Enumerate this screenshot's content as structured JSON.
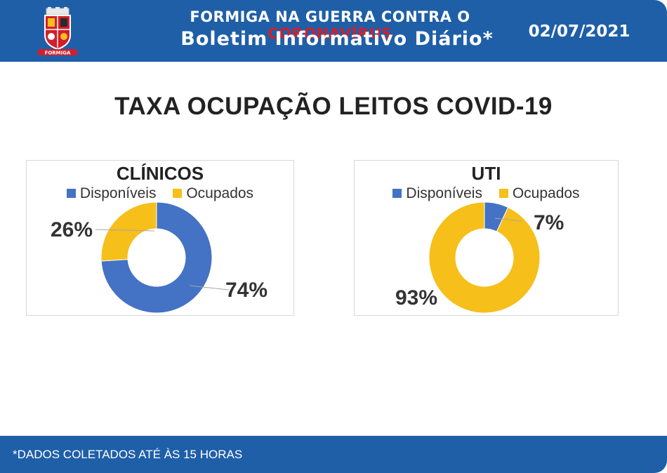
{
  "header": {
    "title_prefix": "FORMIGA NA GUERRA CONTRA O ",
    "title_highlight": "CORONAVÍRUS",
    "subtitle": "Boletim Informativo Diário*",
    "date": "02/07/2021",
    "logo_text": "FORMIGA"
  },
  "main_title": "TAXA OCUPAÇÃO LEITOS COVID-19",
  "colors": {
    "header_blue": "#1f5fa8",
    "disponiveis": "#4472c4",
    "ocupados": "#f6bf1a"
  },
  "chart_data": [
    {
      "type": "pie",
      "variant": "donut",
      "title": "CLÍNICOS",
      "categories": [
        "Disponíveis",
        "Ocupados"
      ],
      "values": [
        74,
        26
      ],
      "labels": [
        "74%",
        "26%"
      ],
      "legend": "top"
    },
    {
      "type": "pie",
      "variant": "donut",
      "title": "UTI",
      "categories": [
        "Disponíveis",
        "Ocupados"
      ],
      "values": [
        7,
        93
      ],
      "labels": [
        "7%",
        "93%"
      ],
      "legend": "top"
    }
  ],
  "footer": {
    "note": "*DADOS COLETADOS ATÉ ÀS 15 HORAS"
  }
}
